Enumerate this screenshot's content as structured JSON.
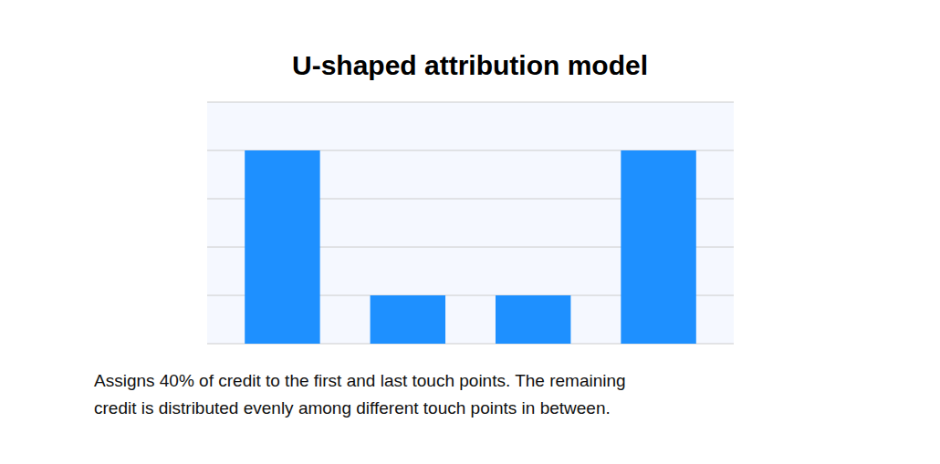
{
  "chart_data": {
    "type": "bar",
    "title": "U-shaped attribution model",
    "categories": [
      null,
      null,
      null,
      null
    ],
    "values": [
      40,
      10,
      10,
      40
    ],
    "color": "#1E90FF",
    "ylim": [
      0,
      50
    ],
    "yticks": [
      0,
      10,
      20,
      30,
      40,
      50
    ],
    "grid": true,
    "tick_labels": false,
    "annotations": [
      "Assigns 40% of credit to the first and last touch points. The remaining",
      "credit is distributed evenly among different touch points in between."
    ]
  }
}
